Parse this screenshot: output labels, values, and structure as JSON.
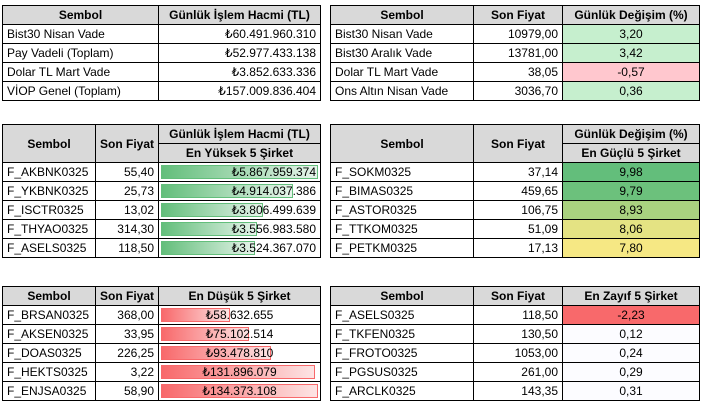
{
  "t1": {
    "headers": [
      "Sembol",
      "Günlük İşlem Hacmi (TL)"
    ],
    "rows": [
      {
        "s": "Bist30 Nisan Vade",
        "v": "₺60.491.960.310"
      },
      {
        "s": "Pay Vadeli (Toplam)",
        "v": "₺52.977.433.138"
      },
      {
        "s": "Dolar TL Mart Vade",
        "v": "₺3.852.633.336"
      },
      {
        "s": "VİOP Genel (Toplam)",
        "v": "₺157.009.836.404"
      }
    ]
  },
  "t2": {
    "headers": [
      "Sembol",
      "Son Fiyat",
      "Günlük Değişim (%)"
    ],
    "rows": [
      {
        "s": "Bist30 Nisan Vade",
        "p": "10979,00",
        "c": "3,20",
        "color": "#c6efce"
      },
      {
        "s": "Bist30 Aralık Vade",
        "p": "13781,00",
        "c": "3,42",
        "color": "#c6efce"
      },
      {
        "s": "Dolar TL Mart Vade",
        "p": "38,05",
        "c": "-0,57",
        "color": "#ffc7ce"
      },
      {
        "s": "Ons Altın Nisan Vade",
        "p": "3036,70",
        "c": "0,36",
        "color": "#c6efce"
      }
    ]
  },
  "t3": {
    "headers": [
      "Sembol",
      "Son Fiyat",
      "Günlük İşlem Hacmi (TL)"
    ],
    "subheader": "En Yüksek 5 Şirket",
    "rows": [
      {
        "s": "F_AKBNK0325",
        "p": "55,40",
        "v": "₺5.867.959.374",
        "level": 1.0
      },
      {
        "s": "F_YKBNK0325",
        "p": "25,73",
        "v": "₺4.914.037.386",
        "level": 0.84
      },
      {
        "s": "F_ISCTR0325",
        "p": "13,02",
        "v": "₺3.806.499.639",
        "level": 0.65
      },
      {
        "s": "F_THYAO0325",
        "p": "314,30",
        "v": "₺3.556.983.580",
        "level": 0.61
      },
      {
        "s": "F_ASELS0325",
        "p": "118,50",
        "v": "₺3.524.367.070",
        "level": 0.6
      }
    ]
  },
  "t4": {
    "headers": [
      "Sembol",
      "Son Fiyat",
      "Günlük Değişim (%)"
    ],
    "subheader": "En Güçlü 5 Şirket",
    "rows": [
      {
        "s": "F_SOKM0325",
        "p": "37,14",
        "c": "9,98",
        "color": "#63be7b"
      },
      {
        "s": "F_BIMAS0325",
        "p": "459,65",
        "c": "9,79",
        "color": "#6cc17c"
      },
      {
        "s": "F_ASTOR0325",
        "p": "106,75",
        "c": "8,93",
        "color": "#a9d27f"
      },
      {
        "s": "F_TTKOM0325",
        "p": "51,09",
        "c": "8,06",
        "color": "#e4e383"
      },
      {
        "s": "F_PETKM0325",
        "p": "17,13",
        "c": "7,80",
        "color": "#f6e884"
      }
    ]
  },
  "t5": {
    "headers": [
      "Sembol",
      "Son Fiyat",
      "En Düşük 5 Şirket"
    ],
    "rows": [
      {
        "s": "F_BRSAN0325",
        "p": "368,00",
        "v": "₺58.632.655",
        "level": 0.44
      },
      {
        "s": "F_AKSEN0325",
        "p": "33,95",
        "v": "₺75.102.514",
        "level": 0.56
      },
      {
        "s": "F_DOAS0325",
        "p": "226,25",
        "v": "₺93.478.810",
        "level": 0.7
      },
      {
        "s": "F_HEKTS0325",
        "p": "3,22",
        "v": "₺131.896.079",
        "level": 0.98
      },
      {
        "s": "F_ENJSA0325",
        "p": "58,90",
        "v": "₺134.373.108",
        "level": 1.0
      }
    ]
  },
  "t6": {
    "headers": [
      "Sembol",
      "Son Fiyat",
      "En Zayıf 5 Şirket"
    ],
    "rows": [
      {
        "s": "F_ASELS0325",
        "p": "118,50",
        "c": "-2,23",
        "color": "#f8696b"
      },
      {
        "s": "F_TKFEN0325",
        "p": "130,50",
        "c": "0,12",
        "color": "#fcfcff"
      },
      {
        "s": "F_FROTO0325",
        "p": "1053,00",
        "c": "0,24",
        "color": "#fcfcff"
      },
      {
        "s": "F_PGSUS0325",
        "p": "261,00",
        "c": "0,29",
        "color": "#fcfcff"
      },
      {
        "s": "F_ARCLK0325",
        "p": "143,35",
        "c": "0,31",
        "color": "#fcfcff"
      }
    ]
  }
}
